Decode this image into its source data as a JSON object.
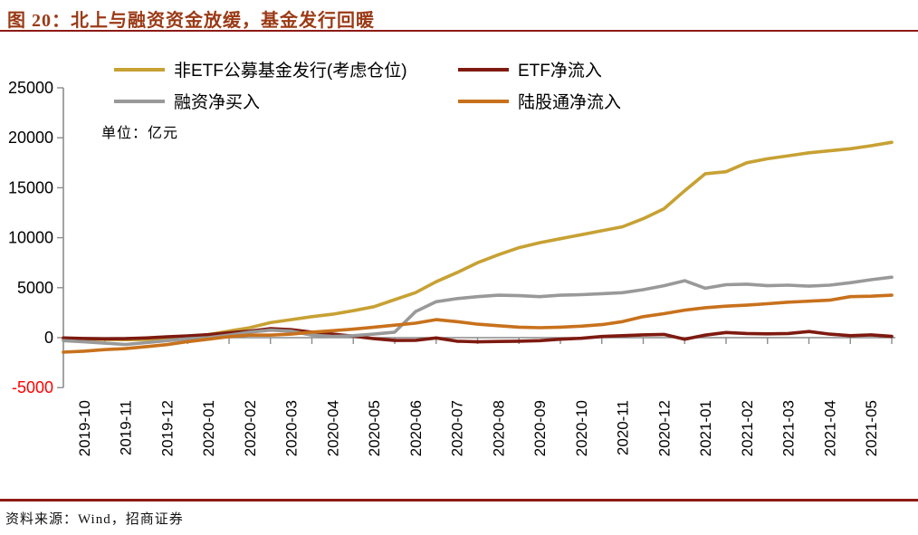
{
  "header": {
    "title": "图 20：北上与融资资金放缓，基金发行回暖"
  },
  "footer": {
    "source": "资料来源：Wind，招商证券"
  },
  "chart_data": {
    "type": "line",
    "title": "北上与融资资金放缓，基金发行回暖",
    "unit_label": "单位：亿元",
    "ylabel": "亿元",
    "ylim": [
      -5000,
      25000
    ],
    "yticks": [
      25000,
      20000,
      15000,
      10000,
      5000,
      0,
      -5000
    ],
    "negative_tick_color": "#ff0000",
    "grid": false,
    "legend_position": "top",
    "points_per_month": 2,
    "x_categories": [
      "2019-10",
      "2019-11",
      "2019-12",
      "2020-01",
      "2020-02",
      "2020-03",
      "2020-04",
      "2020-05",
      "2020-06",
      "2020-07",
      "2020-08",
      "2020-09",
      "2020-10",
      "2020-11",
      "2020-12",
      "2021-01",
      "2021-02",
      "2021-03",
      "2021-04",
      "2021-05"
    ],
    "series": [
      {
        "name": "非ETF公募基金发行(考虑仓位)",
        "color": "#c7a133",
        "values": [
          -100,
          -150,
          -180,
          -200,
          -180,
          -120,
          50,
          300,
          650,
          1000,
          1500,
          1800,
          2100,
          2350,
          2700,
          3100,
          3800,
          4500,
          5600,
          6500,
          7500,
          8300,
          9000,
          9500,
          9900,
          10300,
          10700,
          11100,
          11900,
          12900,
          14700,
          16400,
          16600,
          17500,
          17900,
          18200,
          18500,
          18700,
          18900,
          19200,
          19550
        ]
      },
      {
        "name": "ETF净流入",
        "color": "#7e1a10",
        "values": [
          -30,
          -80,
          -120,
          -100,
          -30,
          80,
          180,
          300,
          480,
          650,
          900,
          800,
          550,
          350,
          150,
          -100,
          -280,
          -270,
          -30,
          -350,
          -420,
          -380,
          -350,
          -300,
          -150,
          -60,
          120,
          200,
          280,
          330,
          -150,
          250,
          520,
          420,
          380,
          420,
          620,
          350,
          200,
          280,
          130
        ]
      },
      {
        "name": "融资净买入",
        "color": "#999999",
        "values": [
          -300,
          -420,
          -550,
          -680,
          -500,
          -300,
          -120,
          0,
          250,
          550,
          750,
          650,
          250,
          120,
          200,
          350,
          550,
          2600,
          3600,
          3900,
          4100,
          4250,
          4200,
          4100,
          4250,
          4300,
          4400,
          4500,
          4800,
          5200,
          5700,
          4950,
          5300,
          5350,
          5200,
          5250,
          5150,
          5250,
          5500,
          5800,
          6050
        ]
      },
      {
        "name": "陆股通净流入",
        "color": "#c8711c",
        "values": [
          -1450,
          -1350,
          -1200,
          -1100,
          -900,
          -700,
          -400,
          -150,
          100,
          250,
          250,
          350,
          550,
          700,
          850,
          1050,
          1250,
          1450,
          1800,
          1600,
          1350,
          1200,
          1050,
          1000,
          1050,
          1150,
          1300,
          1600,
          2100,
          2400,
          2750,
          3000,
          3150,
          3250,
          3400,
          3550,
          3650,
          3750,
          4100,
          4150,
          4250
        ]
      }
    ]
  }
}
